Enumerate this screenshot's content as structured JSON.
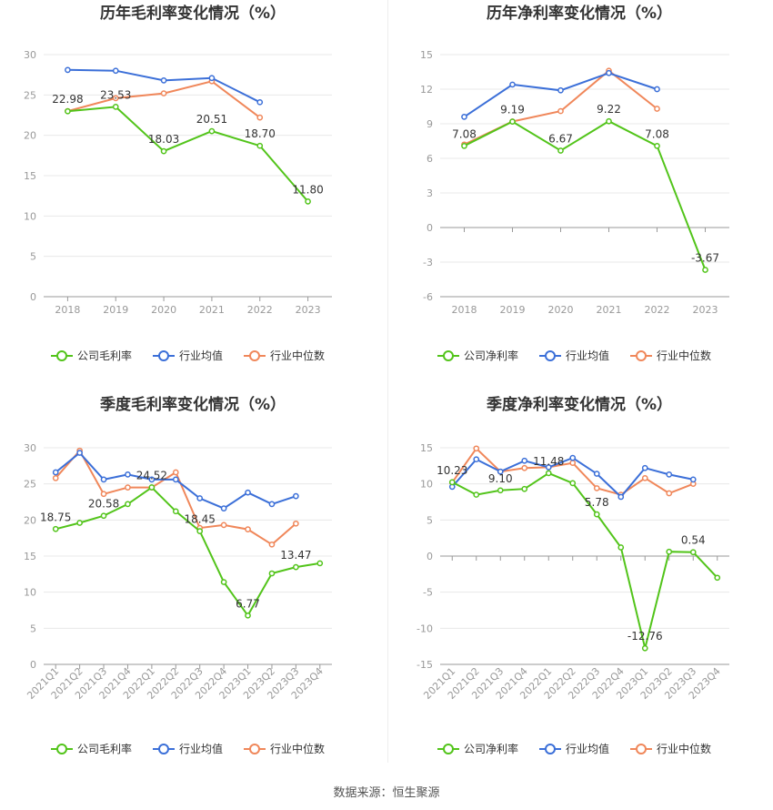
{
  "source": "数据来源：恒生聚源",
  "colors": {
    "company": "#52c41a",
    "avg": "#3b6fd8",
    "median": "#f0875a"
  },
  "chart_data": [
    {
      "type": "line",
      "title": "历年毛利率变化情况（%）",
      "categories": [
        "2018",
        "2019",
        "2020",
        "2021",
        "2022",
        "2023"
      ],
      "ylim": [
        0,
        30
      ],
      "yticks": [
        0,
        5,
        10,
        15,
        20,
        25,
        30
      ],
      "rotate_x": false,
      "series": [
        {
          "name": "公司毛利率",
          "key": "company",
          "values": [
            22.98,
            23.53,
            18.03,
            20.51,
            18.7,
            11.8
          ]
        },
        {
          "name": "行业均值",
          "key": "avg",
          "values": [
            28.1,
            28.0,
            26.8,
            27.1,
            24.1,
            null
          ]
        },
        {
          "name": "行业中位数",
          "key": "median",
          "values": [
            23.0,
            24.6,
            25.2,
            26.7,
            22.2,
            null
          ]
        }
      ],
      "labels": [
        {
          "i": 0,
          "text": "22.98"
        },
        {
          "i": 1,
          "text": "23.53"
        },
        {
          "i": 2,
          "text": "18.03"
        },
        {
          "i": 3,
          "text": "20.51"
        },
        {
          "i": 4,
          "text": "18.70"
        },
        {
          "i": 5,
          "text": "11.80"
        }
      ]
    },
    {
      "type": "line",
      "title": "历年净利率变化情况（%）",
      "categories": [
        "2018",
        "2019",
        "2020",
        "2021",
        "2022",
        "2023"
      ],
      "ylim": [
        -6,
        15
      ],
      "yticks": [
        -6,
        -3,
        0,
        3,
        6,
        9,
        12,
        15
      ],
      "rotate_x": false,
      "series": [
        {
          "name": "公司净利率",
          "key": "company",
          "values": [
            7.08,
            9.19,
            6.67,
            9.22,
            7.08,
            -3.67
          ]
        },
        {
          "name": "行业均值",
          "key": "avg",
          "values": [
            9.6,
            12.4,
            11.9,
            13.4,
            12.0,
            null
          ]
        },
        {
          "name": "行业中位数",
          "key": "median",
          "values": [
            7.2,
            9.2,
            10.1,
            13.6,
            10.3,
            null
          ]
        }
      ],
      "labels": [
        {
          "i": 0,
          "text": "7.08"
        },
        {
          "i": 1,
          "text": "9.19"
        },
        {
          "i": 2,
          "text": "6.67"
        },
        {
          "i": 3,
          "text": "9.22"
        },
        {
          "i": 4,
          "text": "7.08"
        },
        {
          "i": 5,
          "text": "-3.67"
        }
      ]
    },
    {
      "type": "line",
      "title": "季度毛利率变化情况（%）",
      "categories": [
        "2021Q1",
        "2021Q2",
        "2021Q3",
        "2021Q4",
        "2022Q1",
        "2022Q2",
        "2022Q3",
        "2022Q4",
        "2023Q1",
        "2023Q2",
        "2023Q3",
        "2023Q4"
      ],
      "ylim": [
        0,
        30
      ],
      "yticks": [
        0,
        5,
        10,
        15,
        20,
        25,
        30
      ],
      "rotate_x": true,
      "series": [
        {
          "name": "公司毛利率",
          "key": "company",
          "values": [
            18.75,
            19.6,
            20.58,
            22.2,
            24.52,
            21.2,
            18.45,
            11.4,
            6.77,
            12.6,
            13.47,
            14.0
          ]
        },
        {
          "name": "行业均值",
          "key": "avg",
          "values": [
            26.6,
            29.3,
            25.6,
            26.3,
            25.6,
            25.6,
            23.0,
            21.6,
            23.8,
            22.2,
            23.3,
            null
          ]
        },
        {
          "name": "行业中位数",
          "key": "median",
          "values": [
            25.8,
            29.6,
            23.6,
            24.5,
            24.5,
            26.6,
            18.9,
            19.3,
            18.7,
            16.6,
            19.5,
            null
          ]
        }
      ],
      "labels": [
        {
          "i": 0,
          "text": "18.75"
        },
        {
          "i": 2,
          "text": "20.58"
        },
        {
          "i": 4,
          "text": "24.52"
        },
        {
          "i": 6,
          "text": "18.45"
        },
        {
          "i": 8,
          "text": "6.77"
        },
        {
          "i": 10,
          "text": "13.47"
        }
      ]
    },
    {
      "type": "line",
      "title": "季度净利率变化情况（%）",
      "categories": [
        "2021Q1",
        "2021Q2",
        "2021Q3",
        "2021Q4",
        "2022Q1",
        "2022Q2",
        "2022Q3",
        "2022Q4",
        "2023Q1",
        "2023Q2",
        "2023Q3",
        "2023Q4"
      ],
      "ylim": [
        -15,
        15
      ],
      "yticks": [
        -15,
        -10,
        -5,
        0,
        5,
        10,
        15
      ],
      "rotate_x": true,
      "series": [
        {
          "name": "公司净利率",
          "key": "company",
          "values": [
            10.23,
            8.5,
            9.1,
            9.3,
            11.48,
            10.1,
            5.78,
            1.2,
            -12.76,
            0.6,
            0.54,
            -3.0
          ]
        },
        {
          "name": "行业均值",
          "key": "avg",
          "values": [
            9.6,
            13.4,
            11.7,
            13.2,
            12.3,
            13.6,
            11.4,
            8.2,
            12.2,
            11.3,
            10.6,
            null
          ]
        },
        {
          "name": "行业中位数",
          "key": "median",
          "values": [
            10.2,
            14.9,
            11.7,
            12.2,
            12.3,
            12.9,
            9.4,
            8.5,
            10.8,
            8.7,
            10.0,
            null
          ]
        }
      ],
      "labels": [
        {
          "i": 0,
          "text": "10.23"
        },
        {
          "i": 2,
          "text": "9.10"
        },
        {
          "i": 4,
          "text": "11.48"
        },
        {
          "i": 6,
          "text": "5.78"
        },
        {
          "i": 8,
          "text": "-12.76"
        },
        {
          "i": 10,
          "text": "0.54"
        }
      ]
    }
  ]
}
